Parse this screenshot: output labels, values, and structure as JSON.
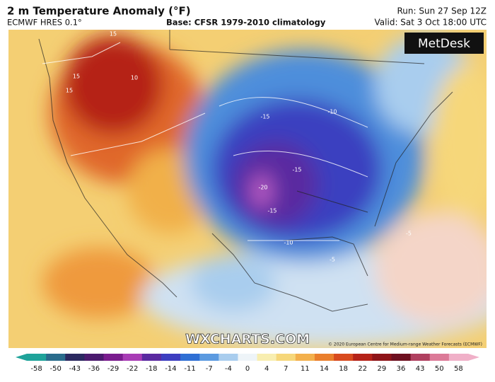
{
  "header": {
    "title": "2 m Temperature Anomaly (°F)",
    "model": "ECMWF HRES 0.1°",
    "base": "Base: CFSR 1979-2010 climatology",
    "run": "Run: Sun 27 Sep 12Z",
    "valid": "Valid: Sat 3 Oct 18:00 UTC"
  },
  "logo": "MetDesk",
  "watermark": "WXCHARTS.COM",
  "credit": "© 2020 European Centre for Medium-range Weather Forecasts (ECMWF)",
  "map_labels": [
    "15",
    "15",
    "15",
    "10",
    "-15",
    "-10",
    "-15",
    "-20",
    "-15",
    "-10",
    "-5",
    "-5"
  ],
  "colorbar": {
    "ticks": [
      -58,
      -50,
      -43,
      -36,
      -29,
      -22,
      -18,
      -14,
      -11,
      -7,
      -4,
      0,
      4,
      7,
      11,
      14,
      18,
      22,
      29,
      36,
      43,
      50,
      58
    ],
    "colors": [
      "#1fa39a",
      "#2a6c8c",
      "#2b2960",
      "#4b1a6e",
      "#7a1c8e",
      "#a83cb5",
      "#5a2aa0",
      "#3d3ec0",
      "#2f6fd4",
      "#5b9ae0",
      "#a9cdee",
      "#eef4f8",
      "#f8eeb0",
      "#f6d77a",
      "#f3b04c",
      "#ea7f2c",
      "#d84a1e",
      "#b52218",
      "#8e1418",
      "#6e1020",
      "#b04060",
      "#dc7a98",
      "#f0b0c8"
    ]
  }
}
